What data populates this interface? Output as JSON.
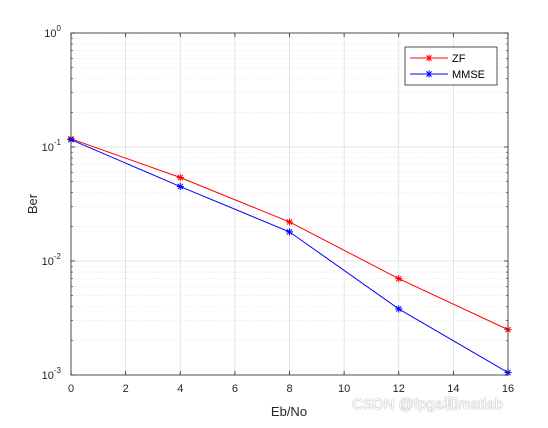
{
  "chart_data": {
    "type": "line",
    "xlabel": "Eb/No",
    "ylabel": "Ber",
    "xlim": [
      0,
      16
    ],
    "ylim": [
      0.001,
      1
    ],
    "yscale": "log",
    "x_ticks": [
      "0",
      "2",
      "4",
      "6",
      "8",
      "10",
      "12",
      "14",
      "16"
    ],
    "y_ticks": [
      {
        "base": "10",
        "exp": "-3"
      },
      {
        "base": "10",
        "exp": "-2"
      },
      {
        "base": "10",
        "exp": "-1"
      },
      {
        "base": "10",
        "exp": "0"
      }
    ],
    "grid": true,
    "minor_grid": true,
    "legend_position": "top-right",
    "x": [
      0,
      4,
      8,
      12,
      16
    ],
    "series": [
      {
        "name": "ZF",
        "color": "#ff0000",
        "marker": "asterisk",
        "values": [
          0.118,
          0.054,
          0.022,
          0.007,
          0.0025
        ]
      },
      {
        "name": "MMSE",
        "color": "#0000ff",
        "marker": "asterisk",
        "values": [
          0.116,
          0.045,
          0.018,
          0.0038,
          0.00105
        ]
      }
    ]
  },
  "watermark": "CSDN @fpga和matlab"
}
